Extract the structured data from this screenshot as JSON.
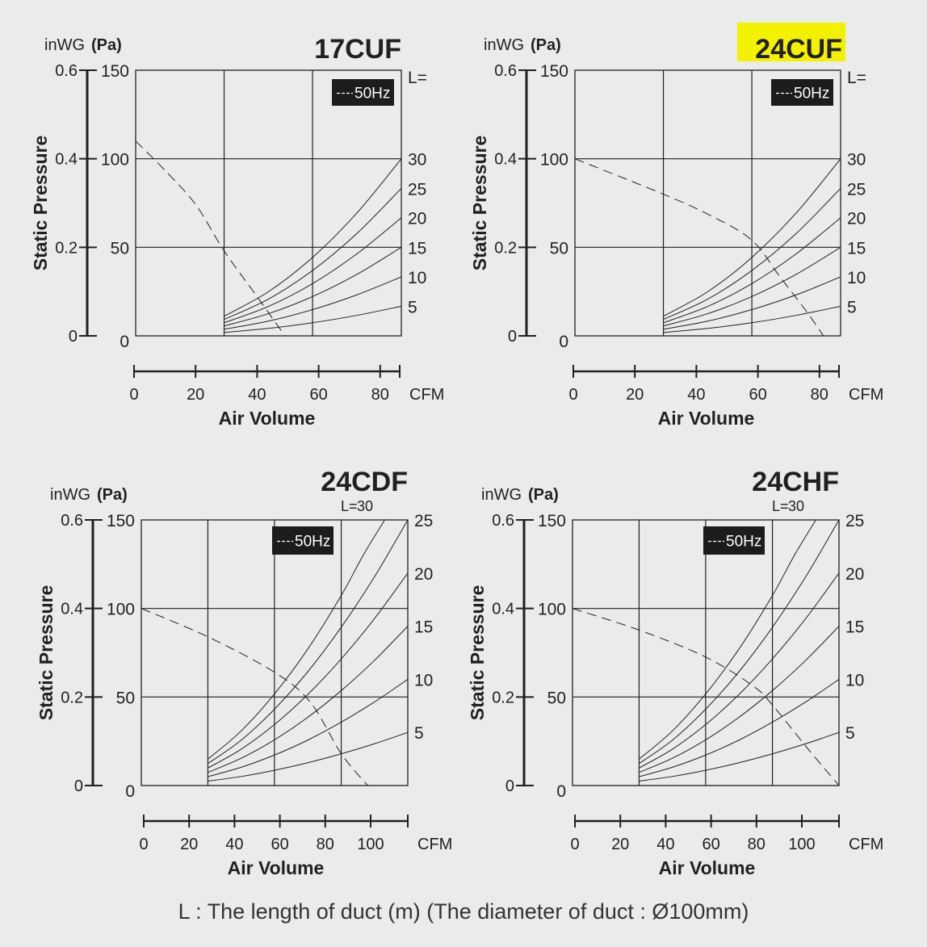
{
  "chart_data": [
    {
      "type": "line",
      "title": "17CUF",
      "y_unit_primary": "inWG",
      "y_unit_secondary": "(Pa)",
      "ylabel": "Static Pressure",
      "xlabel": "Air Volume",
      "x_unit": "CFM",
      "x_ticks": [
        "0",
        "20",
        "40",
        "60",
        "80"
      ],
      "y_ticks_pa": [
        "0",
        "50",
        "100",
        "150"
      ],
      "y_ticks_inwg": [
        "0",
        "0.2",
        "0.4",
        "0.6"
      ],
      "xlim": [
        0,
        88.3
      ],
      "ylim": [
        0,
        150
      ],
      "grid_x": [
        29.4,
        58.8
      ],
      "grid_y": [
        50,
        100
      ],
      "legend": "50Hz",
      "series_prefix": "L=",
      "series": [
        {
          "name": "30",
          "points": [
            [
              29.4,
              11.1
            ],
            [
              44.1,
              24.9
            ],
            [
              58.8,
              44.3
            ],
            [
              73.6,
              69.5
            ],
            [
              88.3,
              100
            ]
          ]
        },
        {
          "name": "25",
          "points": [
            [
              29.4,
              9.3
            ],
            [
              44.1,
              20.7
            ],
            [
              58.8,
              36.9
            ],
            [
              73.6,
              57.9
            ],
            [
              88.3,
              83.3
            ]
          ]
        },
        {
          "name": "20",
          "points": [
            [
              29.4,
              7.4
            ],
            [
              44.1,
              16.6
            ],
            [
              58.8,
              29.5
            ],
            [
              73.6,
              46.4
            ],
            [
              88.3,
              66.7
            ]
          ]
        },
        {
          "name": "15",
          "points": [
            [
              29.4,
              5.6
            ],
            [
              44.1,
              12.5
            ],
            [
              58.8,
              22.2
            ],
            [
              73.6,
              34.8
            ],
            [
              88.3,
              50
            ]
          ]
        },
        {
          "name": "10",
          "points": [
            [
              29.4,
              3.7
            ],
            [
              44.1,
              8.3
            ],
            [
              58.8,
              14.8
            ],
            [
              73.6,
              23.2
            ],
            [
              88.3,
              33.3
            ]
          ]
        },
        {
          "name": "5",
          "points": [
            [
              29.4,
              1.9
            ],
            [
              44.1,
              4.2
            ],
            [
              58.8,
              7.4
            ],
            [
              73.6,
              11.6
            ],
            [
              88.3,
              16.7
            ]
          ]
        }
      ],
      "fan_curve_50hz": [
        [
          0,
          110
        ],
        [
          10,
          93
        ],
        [
          20,
          74
        ],
        [
          29.4,
          48
        ],
        [
          40,
          23
        ],
        [
          49.6,
          0
        ]
      ]
    },
    {
      "type": "line",
      "title": "24CUF",
      "highlight_color": "#f2f200",
      "y_unit_primary": "inWG",
      "y_unit_secondary": "(Pa)",
      "ylabel": "Static Pressure",
      "xlabel": "Air Volume",
      "x_unit": "CFM",
      "x_ticks": [
        "0",
        "20",
        "40",
        "60",
        "80"
      ],
      "y_ticks_pa": [
        "0",
        "50",
        "100",
        "150"
      ],
      "y_ticks_inwg": [
        "0",
        "0.2",
        "0.4",
        "0.6"
      ],
      "xlim": [
        0,
        88.3
      ],
      "ylim": [
        0,
        150
      ],
      "grid_x": [
        29.4,
        58.8
      ],
      "grid_y": [
        50,
        100
      ],
      "legend": "50Hz",
      "series_prefix": "L=",
      "series": [
        {
          "name": "30",
          "points": [
            [
              29.4,
              11.1
            ],
            [
              44.1,
              24.9
            ],
            [
              58.8,
              44.3
            ],
            [
              73.6,
              69.5
            ],
            [
              88.3,
              100
            ]
          ]
        },
        {
          "name": "25",
          "points": [
            [
              29.4,
              9.3
            ],
            [
              44.1,
              20.7
            ],
            [
              58.8,
              36.9
            ],
            [
              73.6,
              57.9
            ],
            [
              88.3,
              83.3
            ]
          ]
        },
        {
          "name": "20",
          "points": [
            [
              29.4,
              7.4
            ],
            [
              44.1,
              16.6
            ],
            [
              58.8,
              29.5
            ],
            [
              73.6,
              46.4
            ],
            [
              88.3,
              66.7
            ]
          ]
        },
        {
          "name": "15",
          "points": [
            [
              29.4,
              5.6
            ],
            [
              44.1,
              12.5
            ],
            [
              58.8,
              22.2
            ],
            [
              73.6,
              34.8
            ],
            [
              88.3,
              50
            ]
          ]
        },
        {
          "name": "10",
          "points": [
            [
              29.4,
              3.7
            ],
            [
              44.1,
              8.3
            ],
            [
              58.8,
              14.8
            ],
            [
              73.6,
              23.2
            ],
            [
              88.3,
              33.3
            ]
          ]
        },
        {
          "name": "5",
          "points": [
            [
              29.4,
              1.9
            ],
            [
              44.1,
              4.2
            ],
            [
              58.8,
              7.4
            ],
            [
              73.6,
              11.6
            ],
            [
              88.3,
              16.7
            ]
          ]
        }
      ],
      "fan_curve_50hz": [
        [
          0,
          100
        ],
        [
          29.4,
          80
        ],
        [
          45,
          68
        ],
        [
          58.8,
          54
        ],
        [
          68.3,
          33
        ],
        [
          77.3,
          13
        ],
        [
          82.6,
          0
        ]
      ]
    },
    {
      "type": "line",
      "title": "24CDF",
      "y_unit_primary": "inWG",
      "y_unit_secondary": "(Pa)",
      "ylabel": "Static Pressure",
      "xlabel": "Air Volume",
      "x_unit": "CFM",
      "x_ticks": [
        "0",
        "20",
        "40",
        "60",
        "80",
        "100"
      ],
      "y_ticks_pa": [
        "0",
        "50",
        "100",
        "150"
      ],
      "y_ticks_inwg": [
        "0",
        "0.2",
        "0.4",
        "0.6"
      ],
      "xlim": [
        0,
        117.7
      ],
      "ylim": [
        0,
        150
      ],
      "grid_x": [
        29.4,
        58.8,
        88.3
      ],
      "grid_y": [
        50,
        100
      ],
      "legend": "50Hz",
      "series_prefix": "L=",
      "series": [
        {
          "name": "30",
          "points": [
            [
              29.4,
              14.9
            ],
            [
              44.1,
              30.8
            ],
            [
              58.8,
              51.7
            ],
            [
              73.6,
              77.2
            ],
            [
              88.3,
              107.3
            ],
            [
              98,
              130
            ],
            [
              107.5,
              150
            ]
          ]
        },
        {
          "name": "25",
          "points": [
            [
              29.4,
              12.4
            ],
            [
              44.1,
              25.6
            ],
            [
              58.8,
              43.1
            ],
            [
              73.6,
              64.4
            ],
            [
              88.3,
              89.4
            ],
            [
              103,
              117.9
            ],
            [
              117.7,
              150
            ]
          ]
        },
        {
          "name": "20",
          "points": [
            [
              29.4,
              9.9
            ],
            [
              44.1,
              20.5
            ],
            [
              58.8,
              34.4
            ],
            [
              73.6,
              51.5
            ],
            [
              88.3,
              71.5
            ],
            [
              103,
              94.3
            ],
            [
              117.7,
              120
            ]
          ]
        },
        {
          "name": "15",
          "points": [
            [
              29.4,
              7.4
            ],
            [
              44.1,
              15.4
            ],
            [
              58.8,
              25.8
            ],
            [
              73.6,
              38.6
            ],
            [
              88.3,
              53.6
            ],
            [
              103,
              70.7
            ],
            [
              117.7,
              90
            ]
          ]
        },
        {
          "name": "10",
          "points": [
            [
              29.4,
              5.0
            ],
            [
              44.1,
              10.3
            ],
            [
              58.8,
              17.2
            ],
            [
              73.6,
              25.7
            ],
            [
              88.3,
              35.8
            ],
            [
              103,
              47.2
            ],
            [
              117.7,
              60
            ]
          ]
        },
        {
          "name": "5",
          "points": [
            [
              29.4,
              2.5
            ],
            [
              44.1,
              5.1
            ],
            [
              58.8,
              8.6
            ],
            [
              73.6,
              12.9
            ],
            [
              88.3,
              17.9
            ],
            [
              103,
              23.6
            ],
            [
              117.7,
              30
            ]
          ]
        }
      ],
      "fan_curve_50hz": [
        [
          0,
          100
        ],
        [
          29.4,
          84
        ],
        [
          58.8,
          64
        ],
        [
          74.7,
          47
        ],
        [
          88.3,
          18
        ],
        [
          100,
          0
        ]
      ]
    },
    {
      "type": "line",
      "title": "24CHF",
      "y_unit_primary": "inWG",
      "y_unit_secondary": "(Pa)",
      "ylabel": "Static Pressure",
      "xlabel": "Air Volume",
      "x_unit": "CFM",
      "x_ticks": [
        "0",
        "20",
        "40",
        "60",
        "80",
        "100"
      ],
      "y_ticks_pa": [
        "0",
        "50",
        "100",
        "150"
      ],
      "y_ticks_inwg": [
        "0",
        "0.2",
        "0.4",
        "0.6"
      ],
      "xlim": [
        0,
        117.7
      ],
      "ylim": [
        0,
        150
      ],
      "grid_x": [
        29.4,
        58.8,
        88.3
      ],
      "grid_y": [
        50,
        100
      ],
      "legend": "50Hz",
      "series_prefix": "L=",
      "series": [
        {
          "name": "30",
          "points": [
            [
              29.4,
              14.9
            ],
            [
              44.1,
              30.8
            ],
            [
              58.8,
              51.7
            ],
            [
              73.6,
              77.2
            ],
            [
              88.3,
              107.3
            ],
            [
              98,
              130
            ],
            [
              107.5,
              150
            ]
          ]
        },
        {
          "name": "25",
          "points": [
            [
              29.4,
              12.4
            ],
            [
              44.1,
              25.6
            ],
            [
              58.8,
              43.1
            ],
            [
              73.6,
              64.4
            ],
            [
              88.3,
              89.4
            ],
            [
              103,
              117.9
            ],
            [
              117.7,
              150
            ]
          ]
        },
        {
          "name": "20",
          "points": [
            [
              29.4,
              9.9
            ],
            [
              44.1,
              20.5
            ],
            [
              58.8,
              34.4
            ],
            [
              73.6,
              51.5
            ],
            [
              88.3,
              71.5
            ],
            [
              103,
              94.3
            ],
            [
              117.7,
              120
            ]
          ]
        },
        {
          "name": "15",
          "points": [
            [
              29.4,
              7.4
            ],
            [
              44.1,
              15.4
            ],
            [
              58.8,
              25.8
            ],
            [
              73.6,
              38.6
            ],
            [
              88.3,
              53.6
            ],
            [
              103,
              70.7
            ],
            [
              117.7,
              90
            ]
          ]
        },
        {
          "name": "10",
          "points": [
            [
              29.4,
              5.0
            ],
            [
              44.1,
              10.3
            ],
            [
              58.8,
              17.2
            ],
            [
              73.6,
              25.7
            ],
            [
              88.3,
              35.8
            ],
            [
              103,
              47.2
            ],
            [
              117.7,
              60
            ]
          ]
        },
        {
          "name": "5",
          "points": [
            [
              29.4,
              2.5
            ],
            [
              44.1,
              5.1
            ],
            [
              58.8,
              8.6
            ],
            [
              73.6,
              12.9
            ],
            [
              88.3,
              17.9
            ],
            [
              103,
              23.6
            ],
            [
              117.7,
              30
            ]
          ]
        }
      ],
      "fan_curve_50hz": [
        [
          0,
          100
        ],
        [
          29.6,
          87.7
        ],
        [
          58.9,
          72.5
        ],
        [
          80,
          56
        ],
        [
          88.6,
          45
        ],
        [
          103.8,
          21
        ],
        [
          117.7,
          0
        ]
      ]
    }
  ],
  "footer": "L : The length of duct (m) (The diameter of duct : Ø100mm)"
}
